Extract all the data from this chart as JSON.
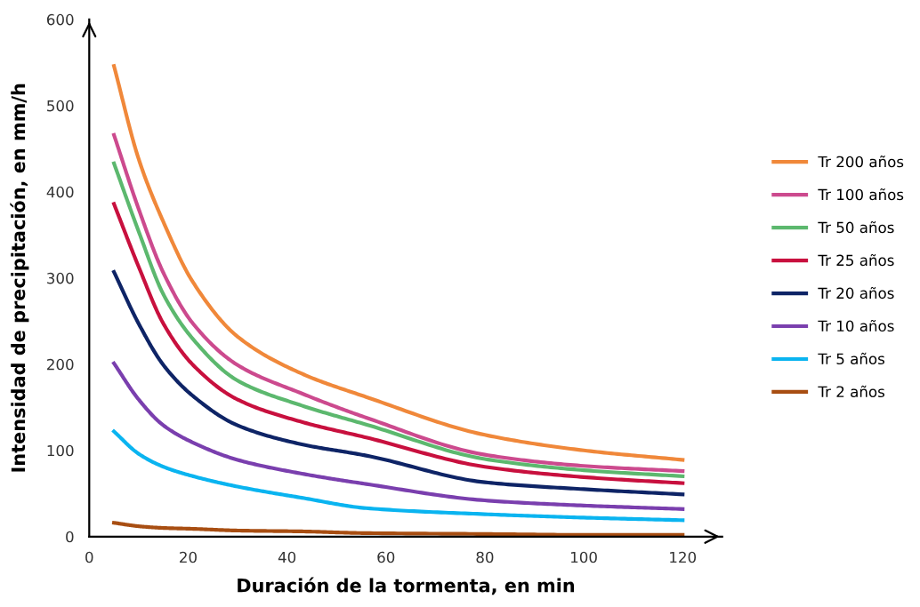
{
  "chart_data": {
    "type": "line",
    "xlabel": "Duración de la tormenta, en min",
    "ylabel": "Intensidad de precipitación, en mm/h",
    "x": [
      5,
      10,
      15,
      21,
      30,
      43,
      56,
      80,
      100,
      120
    ],
    "xlim": [
      0,
      128
    ],
    "xticks": [
      0,
      20,
      40,
      60,
      80,
      100,
      120
    ],
    "ylim": [
      0,
      600
    ],
    "yticks": [
      0,
      100,
      200,
      300,
      400,
      500,
      600
    ],
    "grid": false,
    "legend": "right",
    "marker": "none",
    "line_style": "solid",
    "series": [
      {
        "name": "Tr 200 años",
        "color": "#f0883a",
        "values": [
          546,
          438,
          365,
          295,
          232,
          189,
          162,
          118,
          100,
          89
        ]
      },
      {
        "name": "Tr 100 años",
        "color": "#cc4a8e",
        "values": [
          466,
          380,
          306,
          247,
          199,
          166,
          138,
          95,
          82,
          76
        ]
      },
      {
        "name": "Tr 50 años",
        "color": "#5cb86e",
        "values": [
          433,
          354,
          281,
          229,
          181,
          152,
          130,
          90,
          77,
          70
        ]
      },
      {
        "name": "Tr 25 años",
        "color": "#c8103e",
        "values": [
          386,
          313,
          247,
          199,
          159,
          133,
          115,
          81,
          69,
          62
        ]
      },
      {
        "name": "Tr 20 años",
        "color": "#0e2466",
        "values": [
          307,
          247,
          199,
          163,
          129,
          107,
          94,
          63,
          55,
          49
        ]
      },
      {
        "name": "Tr 10 años",
        "color": "#7a3fae",
        "values": [
          201,
          159,
          129,
          109,
          89,
          73,
          61,
          42,
          36,
          32
        ]
      },
      {
        "name": "Tr 5 años",
        "color": "#0ab4f0",
        "values": [
          122,
          96,
          81,
          70,
          58,
          45,
          33,
          26,
          22,
          19
        ]
      },
      {
        "name": "Tr 2 años",
        "color": "#a84e12",
        "values": [
          16,
          12,
          10,
          9,
          7,
          6,
          4,
          3,
          2,
          2
        ]
      }
    ]
  }
}
